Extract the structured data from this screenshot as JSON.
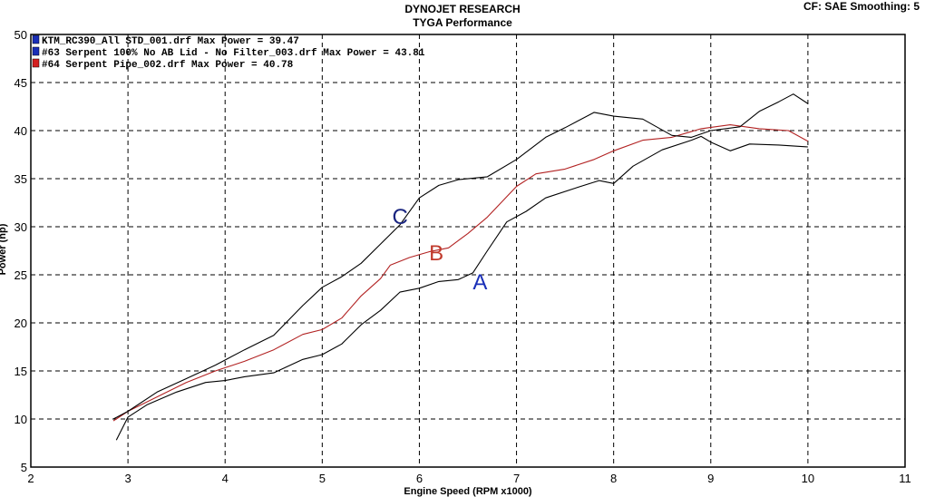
{
  "header": {
    "title": "DYNOJET RESEARCH",
    "subtitle": "TYGA Performance",
    "settings": "CF: SAE  Smoothing: 5"
  },
  "colors": {
    "A": "#000000",
    "B": "#b22222",
    "C": "#000000",
    "legendA": "#1a2fb8",
    "legendB": "#1a2fb8",
    "legendC": "#d42020",
    "labelA": "#1a2fb8",
    "labelB": "#c0392b",
    "labelC": "#1a2580"
  },
  "chart_data": {
    "type": "line",
    "xlabel": "Engine Speed (RPM x1000)",
    "ylabel": "Power (hp)",
    "xlim": [
      2,
      11
    ],
    "ylim": [
      5,
      50
    ],
    "xticks": [
      "2",
      "3",
      "4",
      "5",
      "6",
      "7",
      "8",
      "9",
      "10",
      "11"
    ],
    "yticks": [
      "5",
      "10",
      "15",
      "20",
      "25",
      "30",
      "35",
      "40",
      "45",
      "50"
    ],
    "grid": true,
    "legend_position": "top-left",
    "legend": [
      "KTM_RC390_All STD_001.drf Max Power = 39.47",
      "#63 Serpent 100% No AB Lid - No Filter_003.drf Max Power = 43.81",
      "#64 Serpent Pipe_002.drf Max Power = 40.78"
    ],
    "curve_labels": {
      "A": "A",
      "B": "B",
      "C": "C"
    },
    "series": [
      {
        "key": "A",
        "points": [
          [
            2.88,
            7.8
          ],
          [
            3.0,
            10.2
          ],
          [
            3.2,
            11.5
          ],
          [
            3.5,
            12.8
          ],
          [
            3.8,
            13.8
          ],
          [
            4.0,
            14.0
          ],
          [
            4.2,
            14.4
          ],
          [
            4.5,
            14.8
          ],
          [
            4.8,
            16.2
          ],
          [
            5.0,
            16.7
          ],
          [
            5.2,
            17.8
          ],
          [
            5.4,
            19.8
          ],
          [
            5.6,
            21.3
          ],
          [
            5.8,
            23.2
          ],
          [
            6.0,
            23.6
          ],
          [
            6.2,
            24.3
          ],
          [
            6.4,
            24.5
          ],
          [
            6.55,
            25.2
          ],
          [
            6.7,
            27.5
          ],
          [
            6.9,
            30.5
          ],
          [
            7.1,
            31.6
          ],
          [
            7.3,
            33.0
          ],
          [
            7.6,
            34.0
          ],
          [
            7.85,
            34.8
          ],
          [
            8.0,
            34.5
          ],
          [
            8.2,
            36.3
          ],
          [
            8.5,
            38.0
          ],
          [
            8.8,
            39.0
          ],
          [
            8.9,
            39.4
          ],
          [
            9.0,
            38.8
          ],
          [
            9.2,
            37.9
          ],
          [
            9.4,
            38.6
          ],
          [
            9.7,
            38.5
          ],
          [
            10.0,
            38.3
          ]
        ]
      },
      {
        "key": "B",
        "points": [
          [
            2.85,
            9.8
          ],
          [
            3.0,
            10.8
          ],
          [
            3.3,
            12.3
          ],
          [
            3.6,
            13.8
          ],
          [
            3.9,
            15.0
          ],
          [
            4.2,
            16.0
          ],
          [
            4.5,
            17.2
          ],
          [
            4.8,
            18.8
          ],
          [
            5.0,
            19.3
          ],
          [
            5.2,
            20.5
          ],
          [
            5.4,
            22.8
          ],
          [
            5.6,
            24.6
          ],
          [
            5.7,
            26.0
          ],
          [
            5.9,
            26.8
          ],
          [
            6.1,
            27.4
          ],
          [
            6.3,
            27.8
          ],
          [
            6.5,
            29.3
          ],
          [
            6.7,
            31.0
          ],
          [
            7.0,
            34.2
          ],
          [
            7.2,
            35.5
          ],
          [
            7.5,
            36.0
          ],
          [
            7.8,
            37.0
          ],
          [
            8.0,
            37.9
          ],
          [
            8.3,
            39.0
          ],
          [
            8.6,
            39.3
          ],
          [
            8.9,
            40.2
          ],
          [
            9.2,
            40.6
          ],
          [
            9.5,
            40.2
          ],
          [
            9.8,
            40.0
          ],
          [
            10.0,
            38.9
          ]
        ]
      },
      {
        "key": "C",
        "points": [
          [
            2.85,
            10.0
          ],
          [
            3.0,
            10.8
          ],
          [
            3.3,
            12.8
          ],
          [
            3.6,
            14.2
          ],
          [
            3.9,
            15.6
          ],
          [
            4.2,
            17.2
          ],
          [
            4.5,
            18.7
          ],
          [
            4.8,
            21.8
          ],
          [
            5.0,
            23.7
          ],
          [
            5.2,
            24.8
          ],
          [
            5.4,
            26.2
          ],
          [
            5.6,
            28.2
          ],
          [
            5.8,
            30.2
          ],
          [
            6.0,
            33.0
          ],
          [
            6.2,
            34.3
          ],
          [
            6.4,
            34.9
          ],
          [
            6.7,
            35.2
          ],
          [
            7.0,
            37.0
          ],
          [
            7.3,
            39.3
          ],
          [
            7.5,
            40.3
          ],
          [
            7.8,
            41.9
          ],
          [
            8.0,
            41.5
          ],
          [
            8.3,
            41.2
          ],
          [
            8.6,
            39.5
          ],
          [
            8.8,
            39.3
          ],
          [
            9.0,
            40.0
          ],
          [
            9.3,
            40.4
          ],
          [
            9.5,
            42.0
          ],
          [
            9.7,
            43.0
          ],
          [
            9.85,
            43.8
          ],
          [
            10.0,
            42.8
          ]
        ]
      }
    ]
  }
}
